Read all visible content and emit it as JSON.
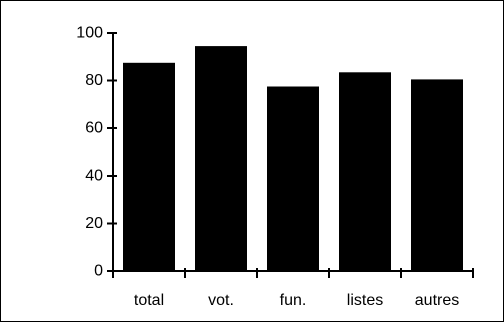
{
  "chart_data": {
    "type": "bar",
    "categories": [
      "total",
      "vot.",
      "fun.",
      "listes",
      "autres"
    ],
    "values": [
      87.5,
      94.5,
      77.5,
      83.5,
      80.5
    ],
    "ylim": [
      0,
      100
    ],
    "y_ticks": [
      0,
      20,
      40,
      60,
      80,
      100
    ],
    "title": "",
    "xlabel": "",
    "ylabel": "",
    "grid": false,
    "legend": "none",
    "bar_color": "#000000"
  }
}
